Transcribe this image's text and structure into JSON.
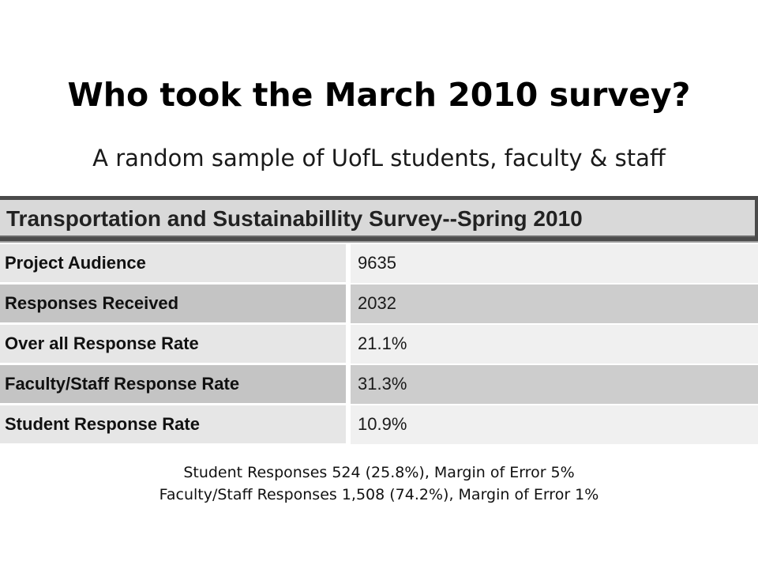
{
  "slide": {
    "title": "Who took the March 2010 survey?",
    "subtitle": "A random sample of UofL students, faculty & staff"
  },
  "table": {
    "header": "Transportation and Sustainabillity Survey--Spring 2010",
    "rows": [
      {
        "label": "Project Audience",
        "value": "9635"
      },
      {
        "label": "Responses Received",
        "value": "2032"
      },
      {
        "label": "Over all Response Rate",
        "value": "21.1%"
      },
      {
        "label": "Faculty/Staff Response Rate",
        "value": "31.3%"
      },
      {
        "label": "Student Response Rate",
        "value": "10.9%"
      }
    ]
  },
  "footnotes": [
    "Student Responses 524 (25.8%), Margin of Error 5%",
    "Faculty/Staff Responses 1,508 (74.2%), Margin of Error 1%"
  ],
  "colors": {
    "header_bg": "#d9d9d9",
    "header_border": "#4b4b4b",
    "row_light": "#f0f0f0",
    "row_dark": "#cdcdcd"
  }
}
